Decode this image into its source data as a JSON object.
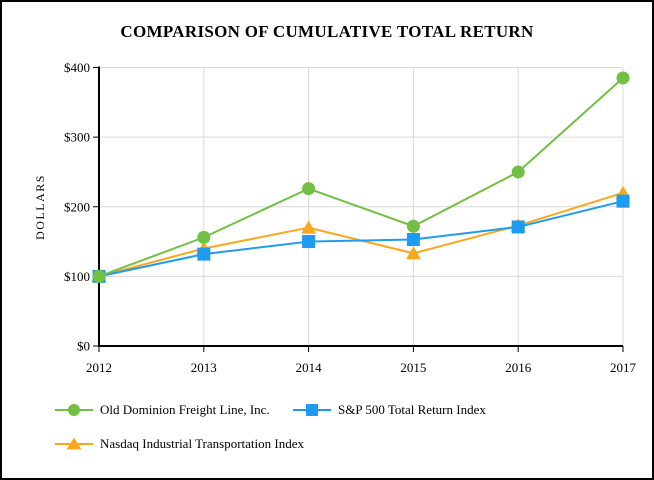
{
  "chart_data": {
    "type": "line",
    "title": "COMPARISON OF CUMULATIVE TOTAL RETURN",
    "xlabel": "",
    "ylabel": "DOLLARS",
    "categories": [
      "2012",
      "2013",
      "2014",
      "2015",
      "2016",
      "2017"
    ],
    "y_ticks": [
      "$0",
      "$100",
      "$200",
      "$300",
      "$400"
    ],
    "ylim": [
      0,
      400
    ],
    "grid": true,
    "legend_position": "bottom",
    "series": [
      {
        "name": "Old Dominion Freight Line, Inc.",
        "marker": "circle",
        "color": "#72BF44",
        "values": [
          100,
          156,
          226,
          172,
          250,
          385
        ]
      },
      {
        "name": "S&P 500 Total Return Index",
        "marker": "square",
        "color": "#1E9BF0",
        "values": [
          100,
          132,
          150,
          153,
          171,
          208
        ]
      },
      {
        "name": "Nasdaq Industrial Transportation Index",
        "marker": "triangle",
        "color": "#FAA720",
        "values": [
          100,
          140,
          170,
          133,
          173,
          220
        ]
      }
    ]
  },
  "colors": {
    "gridline": "#D9D9D9",
    "axis": "#000000",
    "background": "#FFFFFF",
    "border": "#000000"
  }
}
